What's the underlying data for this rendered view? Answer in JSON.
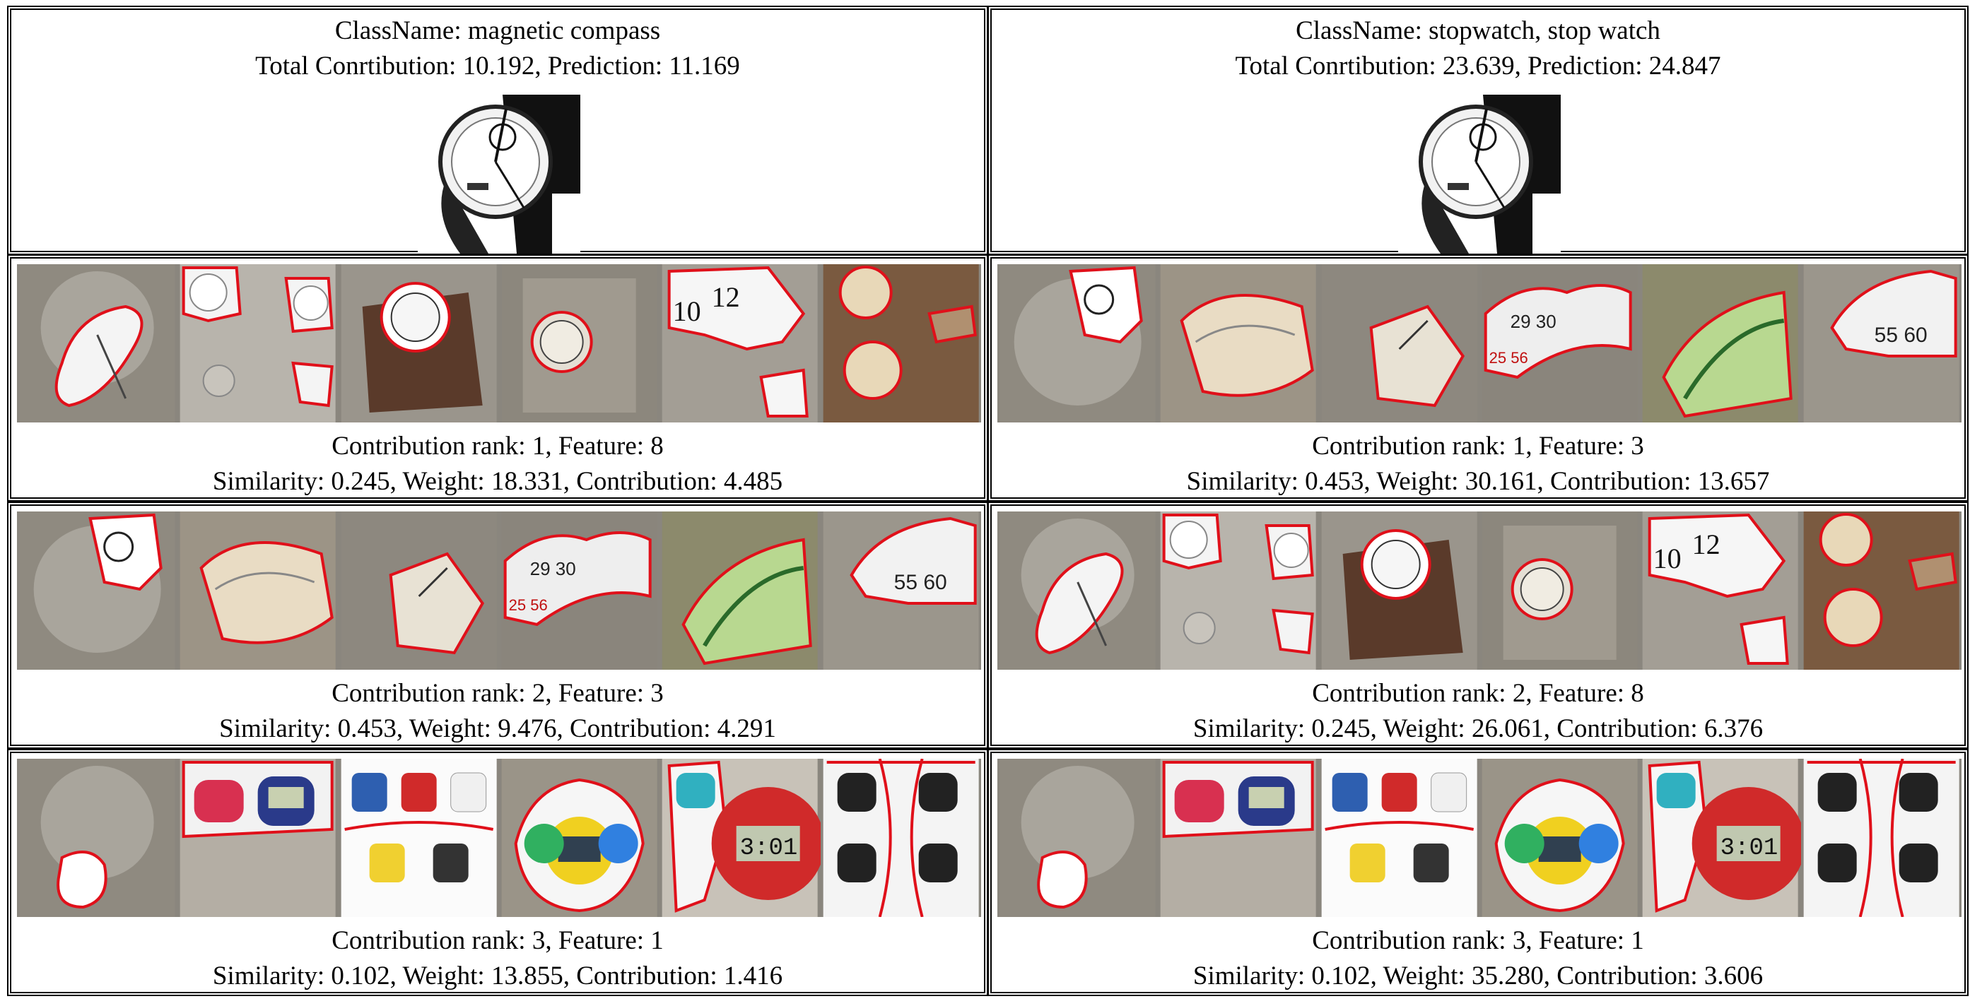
{
  "columns": [
    {
      "classname_line": "ClassName: magnetic compass",
      "total_line": "Total Conrtibution: 10.192, Prediction: 11.169",
      "features": [
        {
          "rank_line": "Contribution rank: 1, Feature: 8",
          "stats_line": "Similarity: 0.245, Weight: 18.331, Contribution: 4.485",
          "tiles": [
            "stopwatch-query",
            "compass-grid",
            "desk-clock",
            "wall-clock",
            "rolex-dial",
            "pocket-watches"
          ]
        },
        {
          "rank_line": "Contribution rank: 2, Feature: 3",
          "stats_line": "Similarity: 0.453, Weight: 9.476, Contribution: 4.291",
          "tiles": [
            "stopwatch-query",
            "stopwatch-dial",
            "stopwatch-closeup",
            "stopwatch-scale",
            "green-dial",
            "silver-stopwatch"
          ]
        },
        {
          "rank_line": "Contribution rank: 3, Feature: 1",
          "stats_line": "Similarity: 0.102, Weight: 13.855, Contribution: 1.416",
          "tiles": [
            "stopwatch-query",
            "digital-stopwatch-pair",
            "digital-stopwatch-set",
            "colorful-stopwatches",
            "red-digital-stopwatch",
            "black-digital-stopwatches"
          ]
        }
      ]
    },
    {
      "classname_line": "ClassName: stopwatch, stop watch",
      "total_line": "Total Conrtibution: 23.639, Prediction: 24.847",
      "features": [
        {
          "rank_line": "Contribution rank: 1, Feature: 3",
          "stats_line": "Similarity: 0.453, Weight: 30.161, Contribution: 13.657",
          "tiles": [
            "stopwatch-query",
            "stopwatch-dial",
            "stopwatch-closeup",
            "stopwatch-scale",
            "green-dial",
            "silver-stopwatch"
          ]
        },
        {
          "rank_line": "Contribution rank: 2, Feature: 8",
          "stats_line": "Similarity: 0.245, Weight: 26.061, Contribution: 6.376",
          "tiles": [
            "stopwatch-query",
            "compass-grid",
            "desk-clock",
            "wall-clock",
            "rolex-dial",
            "pocket-watches"
          ]
        },
        {
          "rank_line": "Contribution rank: 3, Feature: 1",
          "stats_line": "Similarity: 0.102, Weight: 35.280, Contribution: 3.606",
          "tiles": [
            "stopwatch-query",
            "digital-stopwatch-pair",
            "digital-stopwatch-set",
            "colorful-stopwatches",
            "red-digital-stopwatch",
            "black-digital-stopwatches"
          ]
        }
      ]
    }
  ],
  "colors": {
    "highlight_outline": "#e0101a",
    "dim_overlay": "#8a867e",
    "border": "#000000"
  }
}
